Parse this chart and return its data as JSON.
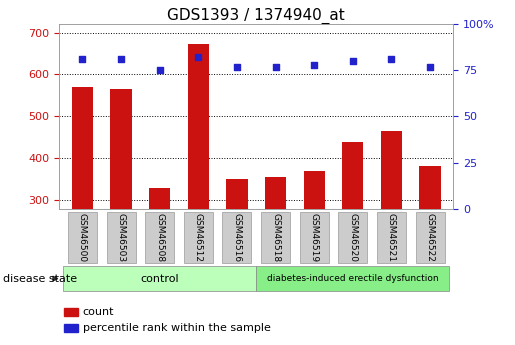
{
  "title": "GDS1393 / 1374940_at",
  "categories": [
    "GSM46500",
    "GSM46503",
    "GSM46508",
    "GSM46512",
    "GSM46516",
    "GSM46518",
    "GSM46519",
    "GSM46520",
    "GSM46521",
    "GSM46522"
  ],
  "counts": [
    570,
    565,
    330,
    672,
    350,
    355,
    370,
    440,
    465,
    382
  ],
  "percentiles": [
    81,
    81,
    75,
    82,
    77,
    77,
    78,
    80,
    81,
    77
  ],
  "ylim_left": [
    280,
    720
  ],
  "ylim_right": [
    0,
    100
  ],
  "yticks_left": [
    300,
    400,
    500,
    600,
    700
  ],
  "yticks_right": [
    0,
    25,
    50,
    75,
    100
  ],
  "bar_color": "#cc1111",
  "dot_color": "#2222cc",
  "control_label": "control",
  "disease_label": "diabetes-induced erectile dysfunction",
  "disease_state_label": "disease state",
  "legend_count_label": "count",
  "legend_percentile_label": "percentile rank within the sample",
  "control_color": "#bbffbb",
  "disease_color": "#88ee88",
  "tick_label_bg": "#cccccc",
  "title_fontsize": 11,
  "tick_fontsize": 8,
  "label_fontsize": 8,
  "group_fontsize": 8
}
